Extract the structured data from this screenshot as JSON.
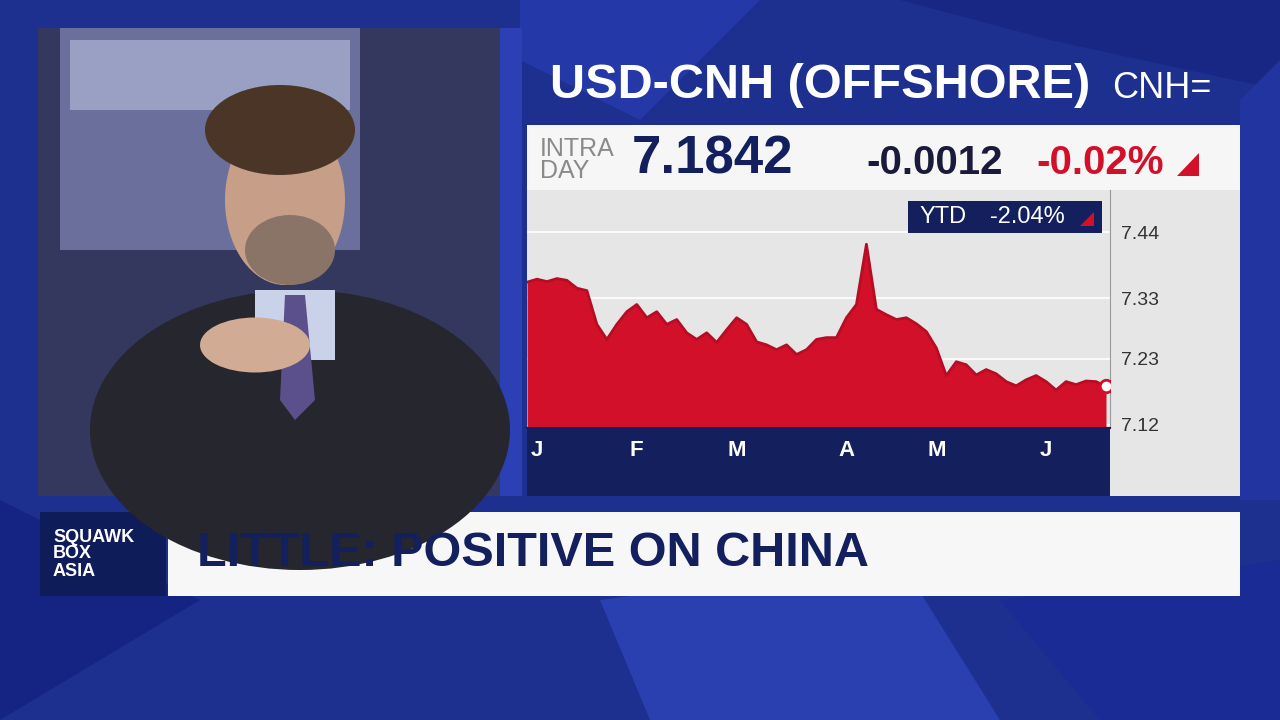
{
  "header": {
    "title": "USD-CNH (OFFSHORE)",
    "ticker": "CNH=",
    "price_label": "INTRA\nDAY",
    "price": "7.1842",
    "change": "-0.0012",
    "change_pct": "-0.02%",
    "ytd_label": "YTD",
    "ytd_change": "-2.04%"
  },
  "banner": {
    "show": "SQUAWK\nBOX\nASIA",
    "headline": "LITTLE: POSITIVE ON CHINA"
  },
  "chart_data": {
    "type": "area",
    "categories": [
      null,
      "J",
      null,
      null,
      null,
      null,
      null,
      null,
      null,
      null,
      null,
      "F",
      null,
      null,
      null,
      null,
      null,
      null,
      null,
      null,
      null,
      "M",
      null,
      null,
      null,
      null,
      null,
      null,
      null,
      null,
      null,
      null,
      "A",
      null,
      null,
      null,
      null,
      null,
      null,
      null,
      null,
      "M",
      null,
      null,
      null,
      null,
      null,
      null,
      null,
      null,
      null,
      null,
      "J",
      null,
      null,
      null,
      null,
      null,
      null
    ],
    "values": [
      7.357,
      7.362,
      7.358,
      7.363,
      7.36,
      7.347,
      7.343,
      7.287,
      7.262,
      7.287,
      7.308,
      7.32,
      7.298,
      7.308,
      7.287,
      7.295,
      7.273,
      7.262,
      7.273,
      7.257,
      7.278,
      7.298,
      7.287,
      7.258,
      7.253,
      7.245,
      7.253,
      7.237,
      7.245,
      7.262,
      7.265,
      7.265,
      7.298,
      7.32,
      7.42,
      7.312,
      7.303,
      7.295,
      7.298,
      7.288,
      7.275,
      7.248,
      7.202,
      7.225,
      7.22,
      7.203,
      7.212,
      7.205,
      7.192,
      7.185,
      7.195,
      7.202,
      7.192,
      7.178,
      7.192,
      7.187,
      7.193,
      7.192,
      7.1842
    ],
    "color": "#d3102a",
    "ylim": [
      7.115,
      7.51
    ],
    "yticks": [
      7.12,
      7.23,
      7.33,
      7.44
    ],
    "grid": true
  }
}
